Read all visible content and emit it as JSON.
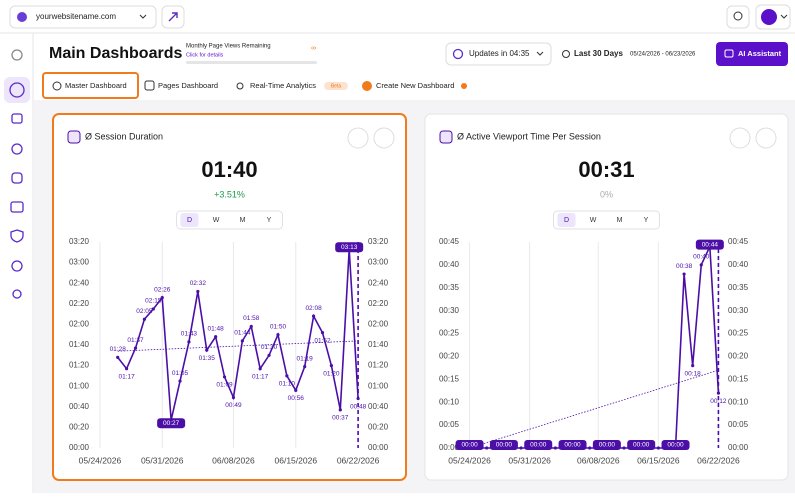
{
  "topbar": {
    "site": "yourwebsitename.com"
  },
  "header": {
    "title": "Main Dashboards",
    "pageviews_label": "Monthly Page Views Remaining",
    "pageviews_link": "Click for details",
    "pageviews_value": "∞",
    "updates": "Updates in 04:35",
    "range_label": "Last 30 Days",
    "range_dates": "05/24/2026 - 06/23/2026",
    "ai_button": "AI Assistant"
  },
  "tabs": [
    {
      "label": "Master Dashboard"
    },
    {
      "label": "Pages Dashboard"
    },
    {
      "label": "Real-Time Analytics",
      "badge": "Beta"
    },
    {
      "label": "Create New Dashboard"
    }
  ],
  "chart_data": [
    {
      "type": "line",
      "title": "Ø Session Duration",
      "metric": "01:40",
      "change": "+3.51%",
      "periods": [
        "D",
        "W",
        "M",
        "Y"
      ],
      "color": "#4b0fa8",
      "x": [
        "05/26/2026",
        "05/27/2026",
        "05/28/2026",
        "05/29/2026",
        "05/30/2026",
        "05/31/2026",
        "06/01/2026",
        "06/02/2026",
        "06/03/2026",
        "06/04/2026",
        "06/05/2026",
        "06/06/2026",
        "06/07/2026",
        "06/08/2026",
        "06/09/2026",
        "06/10/2026",
        "06/11/2026",
        "06/12/2026",
        "06/13/2026",
        "06/14/2026",
        "06/15/2026",
        "06/16/2026",
        "06/17/2026",
        "06/18/2026",
        "06/19/2026",
        "06/20/2026",
        "06/21/2026",
        "06/22/2026"
      ],
      "values": [
        88,
        77,
        97,
        125,
        135,
        146,
        27,
        65,
        103,
        152,
        95,
        108,
        69,
        49,
        104,
        118,
        77,
        90,
        110,
        70,
        56,
        79,
        128,
        112,
        80,
        37,
        193,
        48
      ],
      "value_labels": [
        "01:28",
        "01:17",
        "01:37",
        "02:05",
        "02:15",
        "02:26",
        "00:27",
        "01:05",
        "01:43",
        "02:32",
        "01:35",
        "01:48",
        "01:09",
        "00:49",
        "01:44",
        "01:58",
        "01:17",
        "01:30",
        "01:50",
        "01:10",
        "00:56",
        "01:19",
        "02:08",
        "01:52",
        "01:20",
        "00:37",
        "03:13",
        "00:48"
      ],
      "trend_values": [
        94,
        104
      ],
      "xlim": [
        "05/23/2026",
        "06/23/2026"
      ],
      "xticks": [
        "05/24/2026",
        "05/31/2026",
        "06/08/2026",
        "06/15/2026",
        "06/22/2026"
      ],
      "ylim": [
        0,
        200
      ],
      "yticks": [
        {
          "value": 0,
          "label": "00:00"
        },
        {
          "value": 20,
          "label": "00:20"
        },
        {
          "value": 40,
          "label": "00:40"
        },
        {
          "value": 60,
          "label": "01:00"
        },
        {
          "value": 80,
          "label": "01:20"
        },
        {
          "value": 100,
          "label": "01:40"
        },
        {
          "value": 120,
          "label": "02:00"
        },
        {
          "value": 140,
          "label": "02:20"
        },
        {
          "value": 160,
          "label": "02:40"
        },
        {
          "value": 180,
          "label": "03:00"
        },
        {
          "value": 200,
          "label": "03:20"
        }
      ]
    },
    {
      "type": "line",
      "title": "Ø Active Viewport Time Per Session",
      "metric": "00:31",
      "change": "0%",
      "periods": [
        "D",
        "W",
        "M",
        "Y"
      ],
      "color": "#4b0fa8",
      "x": [
        "05/24/2026",
        "05/25/2026",
        "05/26/2026",
        "05/27/2026",
        "05/28/2026",
        "05/29/2026",
        "05/30/2026",
        "05/31/2026",
        "06/01/2026",
        "06/02/2026",
        "06/03/2026",
        "06/04/2026",
        "06/05/2026",
        "06/06/2026",
        "06/07/2026",
        "06/08/2026",
        "06/09/2026",
        "06/10/2026",
        "06/11/2026",
        "06/12/2026",
        "06/13/2026",
        "06/14/2026",
        "06/15/2026",
        "06/16/2026",
        "06/17/2026",
        "06/18/2026",
        "06/19/2026",
        "06/20/2026",
        "06/21/2026",
        "06/22/2026"
      ],
      "values": [
        0,
        0,
        0,
        0,
        0,
        0,
        0,
        0,
        0,
        0,
        0,
        0,
        0,
        0,
        0,
        0,
        0,
        0,
        0,
        0,
        0,
        0,
        0,
        0,
        0,
        38,
        18,
        40,
        44,
        12
      ],
      "value_labels": [
        "00:00",
        null,
        null,
        null,
        "00:00",
        null,
        null,
        null,
        "00:00",
        null,
        null,
        null,
        "00:00",
        null,
        null,
        null,
        "00:00",
        null,
        null,
        null,
        "00:00",
        null,
        null,
        null,
        "00:00",
        "00:38",
        "00:18",
        "00:40",
        "00:44",
        "00:12"
      ],
      "trend_values": [
        0,
        17
      ],
      "xlim": [
        "05/23/2026",
        "06/23/2026"
      ],
      "xticks": [
        "05/24/2026",
        "05/31/2026",
        "06/08/2026",
        "06/15/2026",
        "06/22/2026"
      ],
      "ylim": [
        0,
        45
      ],
      "yticks": [
        {
          "value": 0,
          "label": "00:00"
        },
        {
          "value": 5,
          "label": "00:05"
        },
        {
          "value": 10,
          "label": "00:10"
        },
        {
          "value": 15,
          "label": "00:15"
        },
        {
          "value": 20,
          "label": "00:20"
        },
        {
          "value": 25,
          "label": "00:25"
        },
        {
          "value": 30,
          "label": "00:30"
        },
        {
          "value": 35,
          "label": "00:35"
        },
        {
          "value": 40,
          "label": "00:40"
        },
        {
          "value": 45,
          "label": "00:45"
        }
      ]
    }
  ]
}
